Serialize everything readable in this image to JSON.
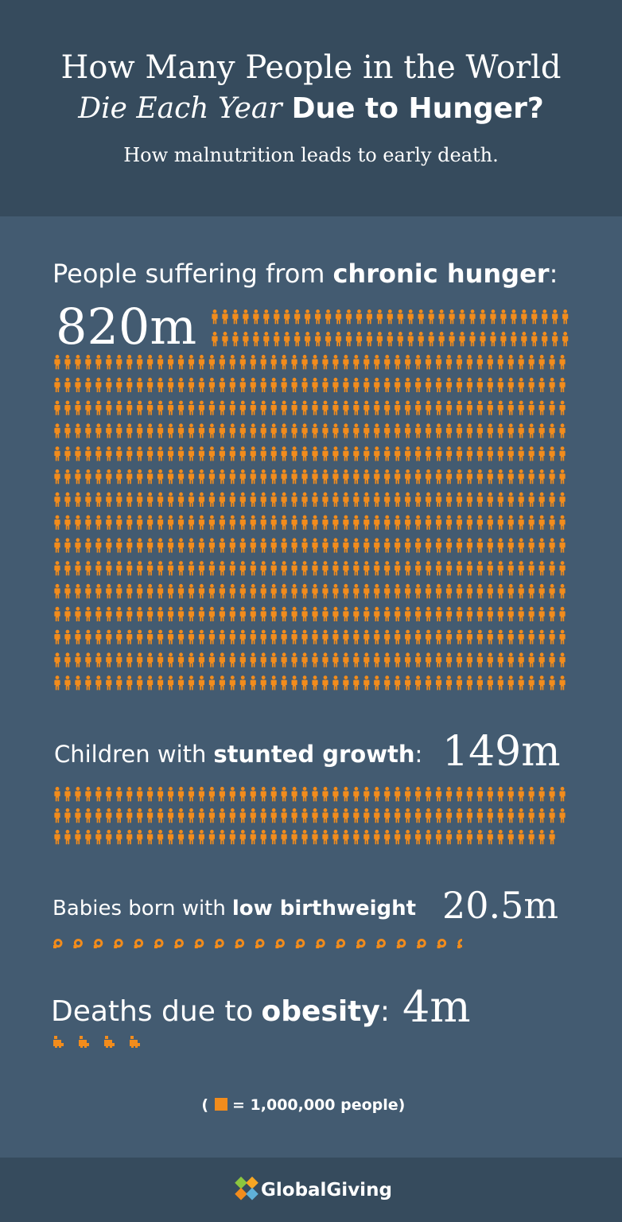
{
  "header": {
    "title_line1": "How Many People in the World",
    "title_italic": "Die Each Year",
    "title_bold": "Due to Hunger?",
    "subtitle": "How malnutrition leads to early death."
  },
  "sections": [
    {
      "label": "People suffering from",
      "label_bold": "chronic hunger",
      "label_end": ":",
      "value": {
        "value": 820,
        "label": "820m"
      }
    },
    {
      "label": "Children with",
      "label_bold": "stunted growth",
      "label_end": ":",
      "value": {
        "value": 149,
        "label": "149m"
      }
    },
    {
      "label": "Babies born with",
      "label_bold": "low birthweight",
      "value": {
        "value": 20.5,
        "label": "20.5m"
      }
    },
    {
      "label": "Deaths due to",
      "label_bold": "obesity",
      "label_end": ":",
      "value": {
        "value": 4,
        "label": "4m"
      }
    }
  ],
  "legend": {
    "open": "(",
    "text": "= 1,000,000 people)"
  },
  "footer": {
    "brand": "GlobalGiving"
  }
}
